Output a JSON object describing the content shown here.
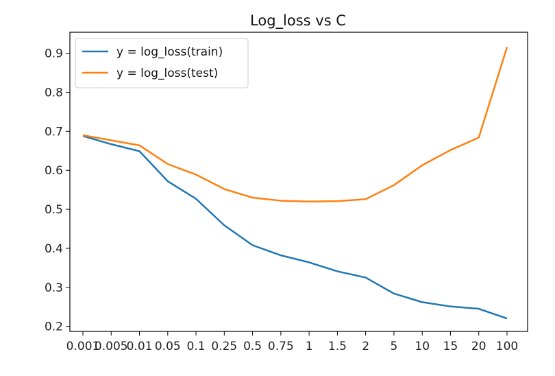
{
  "chart_data": {
    "type": "line",
    "title": "Log_loss vs C",
    "xlabel": "",
    "ylabel": "",
    "categories": [
      "0.001",
      "0.005",
      "0.01",
      "0.05",
      "0.1",
      "0.25",
      "0.5",
      "0.75",
      "1",
      "1.5",
      "2",
      "5",
      "10",
      "15",
      "20",
      "100"
    ],
    "yticks": [
      "0.2",
      "0.3",
      "0.4",
      "0.5",
      "0.6",
      "0.7",
      "0.8",
      "0.9"
    ],
    "ylim": [
      0.187,
      0.954
    ],
    "grid": false,
    "legend_position": "top-left",
    "series": [
      {
        "name": "y = log_loss(train)",
        "color": "#1f77b4",
        "values": [
          0.688,
          0.667,
          0.649,
          0.572,
          0.527,
          0.459,
          0.408,
          0.382,
          0.364,
          0.341,
          0.325,
          0.284,
          0.262,
          0.251,
          0.245,
          0.22
        ]
      },
      {
        "name": "y = log_loss(test)",
        "color": "#ff7f0e",
        "values": [
          0.69,
          0.677,
          0.664,
          0.616,
          0.589,
          0.552,
          0.53,
          0.522,
          0.52,
          0.521,
          0.526,
          0.562,
          0.613,
          0.652,
          0.684,
          0.916
        ]
      }
    ]
  }
}
